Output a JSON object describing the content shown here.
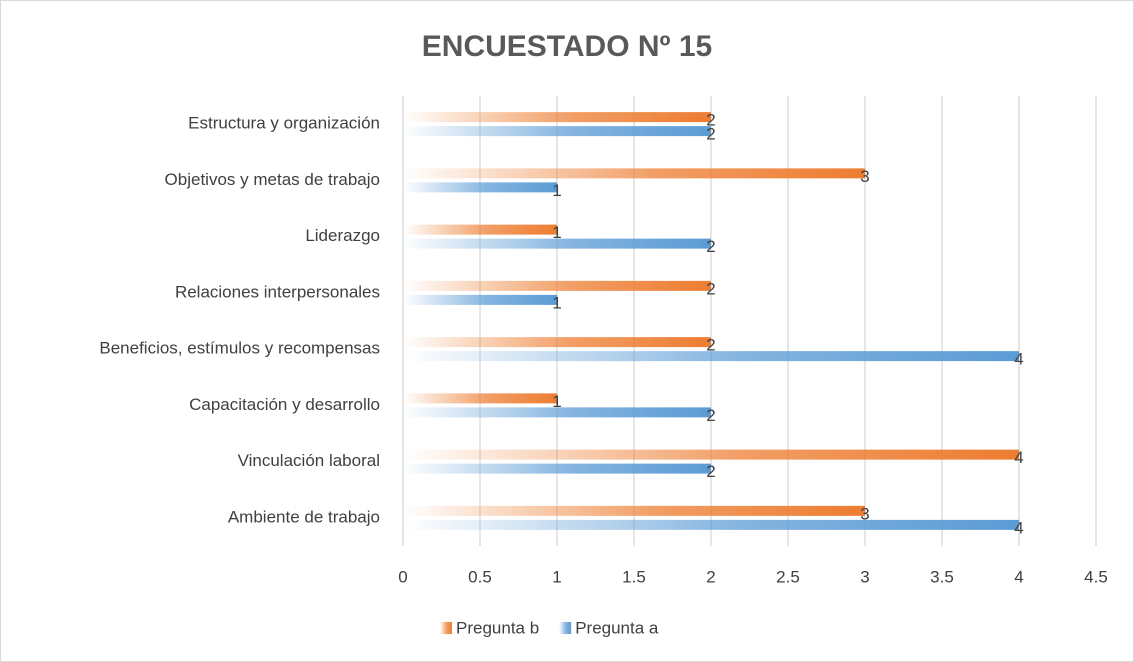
{
  "chart_data": {
    "type": "hbar",
    "title": "ENCUESTADO Nº 15",
    "categories": [
      "Ambiente de trabajo",
      "Vinculación laboral",
      "Capacitación y desarrollo",
      "Beneficios, estímulos y recompensas",
      "Relaciones interpersonales",
      "Liderazgo",
      "Objetivos y metas de trabajo",
      "Estructura y organización"
    ],
    "series": [
      {
        "name": "Pregunta b",
        "color": "#ed7d31",
        "values": [
          3,
          4,
          1,
          2,
          2,
          1,
          3,
          2
        ]
      },
      {
        "name": "Pregunta a",
        "color": "#5b9bd5",
        "values": [
          4,
          2,
          2,
          4,
          1,
          2,
          1,
          2
        ]
      }
    ],
    "xlim": [
      0,
      4.5
    ],
    "xticks": [
      0,
      0.5,
      1,
      1.5,
      2,
      2.5,
      3,
      3.5,
      4,
      4.5
    ],
    "grid": true,
    "legend": "bottom"
  }
}
